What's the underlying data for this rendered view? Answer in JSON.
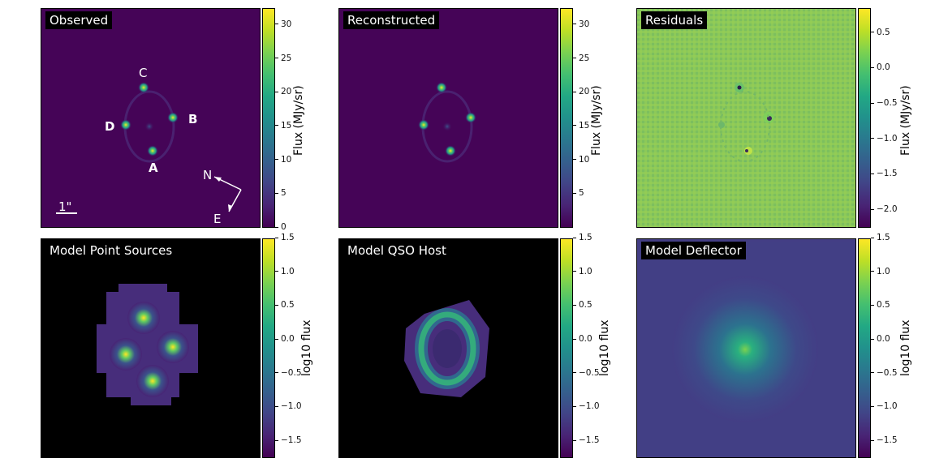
{
  "colors": {
    "viridis_low": "#440154",
    "viridis_mid": "#21918c",
    "viridis_high": "#fde725",
    "bg_dark": "#450457"
  },
  "panels": [
    {
      "title": "Observed",
      "cbar_label": "Flux (MJy/sr)",
      "ticks": [
        "30",
        "25",
        "20",
        "15",
        "10",
        "5",
        "0"
      ],
      "range": [
        0,
        32.5
      ]
    },
    {
      "title": "Reconstructed",
      "cbar_label": "Flux (MJy/sr)",
      "ticks": [
        "30",
        "25",
        "20",
        "15",
        "10",
        "5"
      ],
      "range": [
        0,
        32.5
      ]
    },
    {
      "title": "Residuals",
      "cbar_label": "Flux (MJy/sr)",
      "ticks": [
        "0.5",
        "0.0",
        "−0.5",
        "−1.0",
        "−1.5",
        "−2.0"
      ],
      "range": [
        -2.25,
        0.85
      ]
    },
    {
      "title": "Model Point Sources",
      "cbar_label": "log10 flux",
      "ticks": [
        "1.5",
        "1.0",
        "0.5",
        "0.0",
        "−0.5",
        "−1.0",
        "−1.5"
      ],
      "range": [
        -1.75,
        1.5
      ]
    },
    {
      "title": "Model QSO Host",
      "cbar_label": "log10 flux",
      "ticks": [
        "1.5",
        "1.0",
        "0.5",
        "0.0",
        "−0.5",
        "−1.0",
        "−1.5"
      ],
      "range": [
        -1.75,
        1.5
      ]
    },
    {
      "title": "Model Deflector",
      "cbar_label": "log10 flux",
      "ticks": [
        "1.5",
        "1.0",
        "0.5",
        "0.0",
        "−0.5",
        "−1.0",
        "−1.5"
      ],
      "range": [
        -1.75,
        1.5
      ]
    }
  ],
  "annotations": {
    "image_labels": [
      "A",
      "B",
      "C",
      "D"
    ],
    "compass_n": "N",
    "compass_e": "E",
    "scale_bar": "1\""
  },
  "chart_data": {
    "type": "heatmap",
    "panels": [
      "Observed",
      "Reconstructed",
      "Residuals",
      "Model Point Sources",
      "Model QSO Host",
      "Model Deflector"
    ],
    "colormap": "viridis",
    "colorbar_ranges": {
      "Observed": [
        0,
        32.5
      ],
      "Reconstructed": [
        0,
        32.5
      ],
      "Residuals": [
        -2.25,
        0.85
      ],
      "Model Point Sources": [
        -1.75,
        1.5
      ],
      "Model QSO Host": [
        -1.75,
        1.5
      ],
      "Model Deflector": [
        -1.75,
        1.5
      ]
    },
    "colorbar_labels": [
      "Flux (MJy/sr)",
      "Flux (MJy/sr)",
      "Flux (MJy/sr)",
      "log10 flux",
      "log10 flux",
      "log10 flux"
    ],
    "lensed_images": [
      "A",
      "B",
      "C",
      "D"
    ]
  }
}
